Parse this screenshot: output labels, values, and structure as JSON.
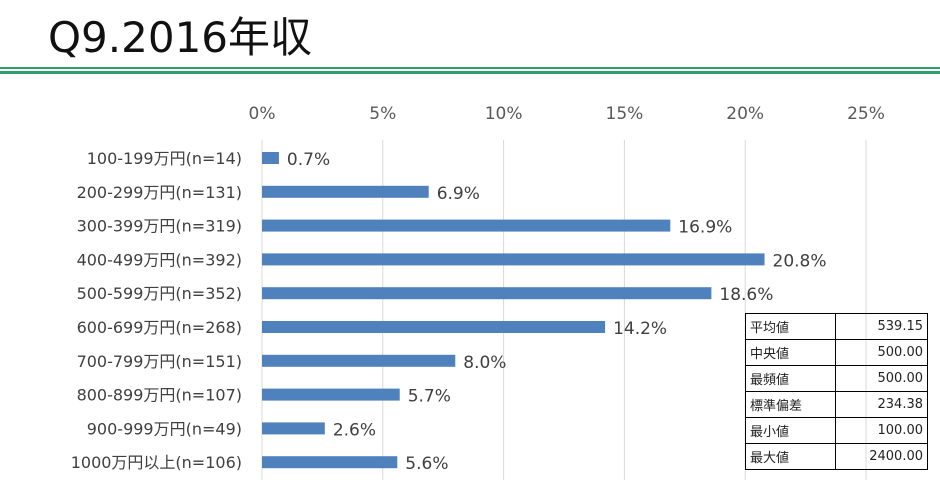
{
  "title": "Q9.2016年収",
  "chart_data": {
    "type": "bar",
    "orientation": "horizontal",
    "categories": [
      "100-199万円(n=14)",
      "200-299万円(n=131)",
      "300-399万円(n=319)",
      "400-499万円(n=392)",
      "500-599万円(n=352)",
      "600-699万円(n=268)",
      "700-799万円(n=151)",
      "800-899万円(n=107)",
      "900-999万円(n=49)",
      "1000万円以上(n=106)"
    ],
    "values": [
      0.7,
      6.9,
      16.9,
      20.8,
      18.6,
      14.2,
      8.0,
      5.7,
      2.6,
      5.6
    ],
    "value_labels": [
      "0.7%",
      "6.9%",
      "16.9%",
      "20.8%",
      "18.6%",
      "14.2%",
      "8.0%",
      "5.7%",
      "2.6%",
      "5.6%"
    ],
    "x_ticks": [
      0,
      5,
      10,
      15,
      20,
      25
    ],
    "x_tick_labels": [
      "0%",
      "5%",
      "10%",
      "15%",
      "20%",
      "25%"
    ],
    "xlim": [
      0,
      25
    ],
    "x_axis_position": "top",
    "grid": true,
    "bar_color": "#4f81bd",
    "grid_color": "#d9d9d9"
  },
  "stats_table": [
    {
      "label": "平均値",
      "value": "539.15"
    },
    {
      "label": "中央値",
      "value": "500.00"
    },
    {
      "label": "最頻値",
      "value": "500.00"
    },
    {
      "label": "標準偏差",
      "value": "234.38"
    },
    {
      "label": "最小値",
      "value": "100.00"
    },
    {
      "label": "最大値",
      "value": "2400.00"
    }
  ]
}
